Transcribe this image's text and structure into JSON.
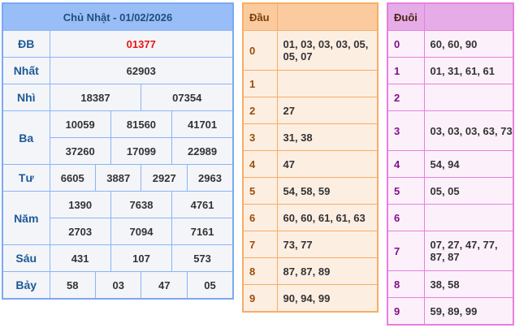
{
  "results": {
    "title": "Chủ Nhật - 01/02/2026",
    "prizes": [
      {
        "label": "ĐB",
        "rows": [
          [
            "01377"
          ]
        ]
      },
      {
        "label": "Nhất",
        "rows": [
          [
            "62903"
          ]
        ]
      },
      {
        "label": "Nhì",
        "rows": [
          [
            "18387",
            "07354"
          ]
        ]
      },
      {
        "label": "Ba",
        "rows": [
          [
            "10059",
            "81560",
            "41701"
          ],
          [
            "37260",
            "17099",
            "22989"
          ]
        ]
      },
      {
        "label": "Tư",
        "rows": [
          [
            "6605",
            "3887",
            "2927",
            "2963"
          ]
        ]
      },
      {
        "label": "Năm",
        "rows": [
          [
            "1390",
            "7638",
            "4761"
          ],
          [
            "2703",
            "7094",
            "7161"
          ]
        ]
      },
      {
        "label": "Sáu",
        "rows": [
          [
            "431",
            "107",
            "573"
          ]
        ]
      },
      {
        "label": "Bảy",
        "rows": [
          [
            "58",
            "03",
            "47",
            "05"
          ]
        ]
      }
    ],
    "special_color": "#ee1111"
  },
  "dau": {
    "header": "Đầu",
    "rows": [
      {
        "k": "0",
        "v": "01, 03, 03, 03, 05, 05, 07"
      },
      {
        "k": "1",
        "v": ""
      },
      {
        "k": "2",
        "v": "27"
      },
      {
        "k": "3",
        "v": "31, 38"
      },
      {
        "k": "4",
        "v": "47"
      },
      {
        "k": "5",
        "v": "54, 58, 59"
      },
      {
        "k": "6",
        "v": "60, 60, 61, 61, 63"
      },
      {
        "k": "7",
        "v": "73, 77"
      },
      {
        "k": "8",
        "v": "87, 87, 89"
      },
      {
        "k": "9",
        "v": "90, 94, 99"
      }
    ]
  },
  "duoi": {
    "header": "Đuôi",
    "rows": [
      {
        "k": "0",
        "v": "60, 60, 90"
      },
      {
        "k": "1",
        "v": "01, 31, 61, 61"
      },
      {
        "k": "2",
        "v": ""
      },
      {
        "k": "3",
        "v": "03, 03, 03, 63, 73"
      },
      {
        "k": "4",
        "v": "54, 94"
      },
      {
        "k": "5",
        "v": "05, 05"
      },
      {
        "k": "6",
        "v": ""
      },
      {
        "k": "7",
        "v": "07, 27, 47, 77, 87, 87"
      },
      {
        "k": "8",
        "v": "38, 58"
      },
      {
        "k": "9",
        "v": "59, 89, 99"
      }
    ]
  }
}
